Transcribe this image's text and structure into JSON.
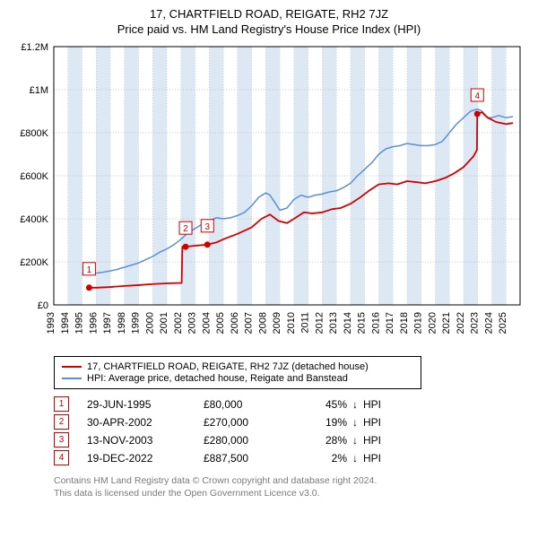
{
  "title_line1": "17, CHARTFIELD ROAD, REIGATE, RH2 7JZ",
  "title_line2": "Price paid vs. HM Land Registry's House Price Index (HPI)",
  "chart": {
    "type": "line",
    "background_color": "#ffffff",
    "plot_border_color": "#000000",
    "grid_color": "#b8b8b8",
    "grid_dash": "1,2",
    "vband_color": "#dde8f5",
    "xlim": [
      1993,
      2026
    ],
    "ylim": [
      0,
      1200000
    ],
    "yticks": [
      {
        "v": 0,
        "label": "£0"
      },
      {
        "v": 200000,
        "label": "£200K"
      },
      {
        "v": 400000,
        "label": "£400K"
      },
      {
        "v": 600000,
        "label": "£600K"
      },
      {
        "v": 800000,
        "label": "£800K"
      },
      {
        "v": 1000000,
        "label": "£1M"
      },
      {
        "v": 1200000,
        "label": "£1.2M"
      }
    ],
    "xticks": [
      1993,
      1994,
      1995,
      1996,
      1997,
      1998,
      1999,
      2000,
      2001,
      2002,
      2003,
      2004,
      2005,
      2006,
      2007,
      2008,
      2009,
      2010,
      2011,
      2012,
      2013,
      2014,
      2015,
      2016,
      2017,
      2018,
      2019,
      2020,
      2021,
      2022,
      2023,
      2024,
      2025
    ],
    "series_property": {
      "color": "#d00000",
      "width": 1.8,
      "label": "17, CHARTFIELD ROAD, REIGATE, RH2 7JZ (detached house)",
      "data": [
        [
          1995.5,
          80000
        ],
        [
          1996,
          80000
        ],
        [
          1997,
          83000
        ],
        [
          1998,
          88000
        ],
        [
          1999,
          92000
        ],
        [
          2000,
          97000
        ],
        [
          2001,
          100000
        ],
        [
          2002.05,
          102000
        ],
        [
          2002.1,
          270000
        ],
        [
          2002.33,
          270000
        ],
        [
          2003,
          275000
        ],
        [
          2003.87,
          280000
        ],
        [
          2004.5,
          290000
        ],
        [
          2005,
          305000
        ],
        [
          2006,
          330000
        ],
        [
          2007,
          360000
        ],
        [
          2007.7,
          400000
        ],
        [
          2008.3,
          420000
        ],
        [
          2008.9,
          390000
        ],
        [
          2009.5,
          380000
        ],
        [
          2010,
          400000
        ],
        [
          2010.7,
          430000
        ],
        [
          2011.3,
          425000
        ],
        [
          2012,
          430000
        ],
        [
          2012.7,
          445000
        ],
        [
          2013.3,
          450000
        ],
        [
          2014,
          470000
        ],
        [
          2014.7,
          500000
        ],
        [
          2015.3,
          530000
        ],
        [
          2016,
          560000
        ],
        [
          2016.7,
          565000
        ],
        [
          2017.3,
          560000
        ],
        [
          2018,
          575000
        ],
        [
          2018.7,
          570000
        ],
        [
          2019.3,
          565000
        ],
        [
          2020,
          575000
        ],
        [
          2020.7,
          590000
        ],
        [
          2021.3,
          610000
        ],
        [
          2022,
          640000
        ],
        [
          2022.7,
          690000
        ],
        [
          2022.95,
          720000
        ],
        [
          2022.97,
          887500
        ],
        [
          2023.3,
          895000
        ],
        [
          2023.7,
          870000
        ],
        [
          2024.3,
          850000
        ],
        [
          2025,
          840000
        ],
        [
          2025.5,
          845000
        ]
      ]
    },
    "series_hpi": {
      "color": "#5b8fd6",
      "width": 1.5,
      "label": "HPI: Average price, detached house, Reigate and Banstead",
      "data": [
        [
          1995,
          145000
        ],
        [
          1995.5,
          146000
        ],
        [
          1996,
          148000
        ],
        [
          1996.5,
          152000
        ],
        [
          1997,
          158000
        ],
        [
          1997.5,
          165000
        ],
        [
          1998,
          175000
        ],
        [
          1998.5,
          185000
        ],
        [
          1999,
          195000
        ],
        [
          1999.5,
          210000
        ],
        [
          2000,
          225000
        ],
        [
          2000.5,
          245000
        ],
        [
          2001,
          260000
        ],
        [
          2001.5,
          280000
        ],
        [
          2002,
          305000
        ],
        [
          2002.5,
          335000
        ],
        [
          2003,
          355000
        ],
        [
          2003.5,
          375000
        ],
        [
          2004,
          390000
        ],
        [
          2004.5,
          405000
        ],
        [
          2005,
          400000
        ],
        [
          2005.5,
          405000
        ],
        [
          2006,
          415000
        ],
        [
          2006.5,
          430000
        ],
        [
          2007,
          460000
        ],
        [
          2007.5,
          500000
        ],
        [
          2008,
          520000
        ],
        [
          2008.3,
          510000
        ],
        [
          2008.7,
          470000
        ],
        [
          2009,
          440000
        ],
        [
          2009.5,
          450000
        ],
        [
          2010,
          490000
        ],
        [
          2010.5,
          510000
        ],
        [
          2011,
          500000
        ],
        [
          2011.5,
          510000
        ],
        [
          2012,
          515000
        ],
        [
          2012.5,
          525000
        ],
        [
          2013,
          530000
        ],
        [
          2013.5,
          545000
        ],
        [
          2014,
          565000
        ],
        [
          2014.5,
          600000
        ],
        [
          2015,
          630000
        ],
        [
          2015.5,
          660000
        ],
        [
          2016,
          700000
        ],
        [
          2016.5,
          725000
        ],
        [
          2017,
          735000
        ],
        [
          2017.5,
          740000
        ],
        [
          2018,
          750000
        ],
        [
          2018.5,
          745000
        ],
        [
          2019,
          740000
        ],
        [
          2019.5,
          740000
        ],
        [
          2020,
          745000
        ],
        [
          2020.5,
          760000
        ],
        [
          2021,
          800000
        ],
        [
          2021.5,
          840000
        ],
        [
          2022,
          870000
        ],
        [
          2022.5,
          900000
        ],
        [
          2023,
          910000
        ],
        [
          2023.3,
          900000
        ],
        [
          2023.7,
          870000
        ],
        [
          2024,
          870000
        ],
        [
          2024.5,
          880000
        ],
        [
          2025,
          870000
        ],
        [
          2025.5,
          875000
        ]
      ]
    },
    "sale_markers": [
      {
        "n": "1",
        "x": 1995.5,
        "y": 80000
      },
      {
        "n": "2",
        "x": 2002.33,
        "y": 270000
      },
      {
        "n": "3",
        "x": 2003.87,
        "y": 280000
      },
      {
        "n": "4",
        "x": 2022.97,
        "y": 887500
      }
    ]
  },
  "legend": {
    "rows": [
      {
        "color": "#d00000",
        "label": "17, CHARTFIELD ROAD, REIGATE, RH2 7JZ (detached house)"
      },
      {
        "color": "#5b8fd6",
        "label": "HPI: Average price, detached house, Reigate and Banstead"
      }
    ]
  },
  "sales": [
    {
      "n": "1",
      "date": "29-JUN-1995",
      "price": "£80,000",
      "pct": "45%",
      "arrow": "↓",
      "suffix": "HPI"
    },
    {
      "n": "2",
      "date": "30-APR-2002",
      "price": "£270,000",
      "pct": "19%",
      "arrow": "↓",
      "suffix": "HPI"
    },
    {
      "n": "3",
      "date": "13-NOV-2003",
      "price": "£280,000",
      "pct": "28%",
      "arrow": "↓",
      "suffix": "HPI"
    },
    {
      "n": "4",
      "date": "19-DEC-2022",
      "price": "£887,500",
      "pct": "2%",
      "arrow": "↓",
      "suffix": "HPI"
    }
  ],
  "footer_line1": "Contains HM Land Registry data © Crown copyright and database right 2024.",
  "footer_line2": "This data is licensed under the Open Government Licence v3.0."
}
